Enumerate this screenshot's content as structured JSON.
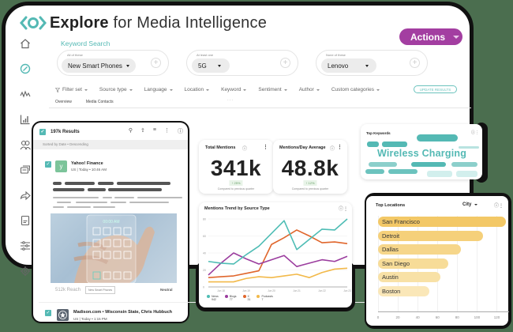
{
  "app": {
    "title_bold": "Explore",
    "title_rest": " for Media Intelligence",
    "actions_label": "Actions",
    "brand_color": "#54b9b4",
    "actions_color": "#a33ea1"
  },
  "sidebar": {
    "items": [
      {
        "icon": "home-icon"
      },
      {
        "icon": "compass-icon",
        "active": true
      },
      {
        "icon": "pulse-icon"
      },
      {
        "icon": "bar-chart-icon"
      },
      {
        "icon": "users-icon"
      },
      {
        "icon": "chat-icon"
      },
      {
        "icon": "share-icon"
      },
      {
        "icon": "document-icon"
      },
      {
        "icon": "sliders-icon"
      },
      {
        "icon": "settings-icon"
      }
    ]
  },
  "keyword_search": {
    "label": "Keyword Search",
    "groups": [
      {
        "caption": "All of these",
        "value": "New Smart Phones"
      },
      {
        "caption": "At least one",
        "value": "5G"
      },
      {
        "caption": "None of these",
        "value": "Lenovo"
      }
    ]
  },
  "filters": {
    "items": [
      "Filter set",
      "Source type",
      "Language",
      "Location",
      "Keyword",
      "Sentiment",
      "Author",
      "Custom categories"
    ],
    "more": "...",
    "update_label": "UPDATE RESULTS"
  },
  "tabs": [
    "Overview",
    "Media Contacts"
  ],
  "results": {
    "count_label": "197k Results",
    "sort_label": "Sorted by Date • Descending",
    "items": [
      {
        "source": "Yahoo! Finance",
        "meta": "US | Today • 10:46 AM",
        "avatar_letter": "y",
        "reach": "512k Reach",
        "tag": "New Smart Phones",
        "sentiment": "Neutral"
      },
      {
        "source": "Madison.com • Wisconsin State, Chris Hubbuch",
        "meta": "US | Today • 1:15 PM"
      }
    ]
  },
  "kpis": [
    {
      "title": "Total Mentions",
      "value": "341k",
      "delta": "↑ 25%",
      "compare": "Compared to previous quarter"
    },
    {
      "title": "Mentions/Day Average",
      "value": "48.8k",
      "delta": "↑ 12%",
      "compare": "Compared to previous quarter"
    }
  ],
  "top_keywords": {
    "title": "Top Keywords",
    "highlight": "Wireless Charging"
  },
  "top_locations": {
    "title": "Top Locations",
    "dimension": "City"
  },
  "chart_data": [
    {
      "type": "line",
      "title": "Mentions Trend by Source Type",
      "categories": [
        "",
        "Jun 18",
        "",
        "Jun 19",
        "",
        "Jun 20",
        "",
        "Jun 21",
        "",
        "Jun 22",
        "",
        "Jun 23"
      ],
      "ylim": [
        0,
        80
      ],
      "yticks": [
        0,
        20,
        40,
        60,
        80
      ],
      "series": [
        {
          "name": "News",
          "total": "942",
          "color": "#4fbdb5",
          "values": [
            30,
            28,
            27,
            38,
            48,
            63,
            78,
            44,
            56,
            68,
            67,
            80
          ]
        },
        {
          "name": "Blogs",
          "total": "77",
          "color": "#9b3d9e",
          "values": [
            14,
            28,
            40,
            33,
            27,
            32,
            37,
            24,
            28,
            32,
            30,
            36
          ]
        },
        {
          "name": "X",
          "total": "31",
          "color": "#e0662c",
          "values": [
            11,
            12,
            13,
            16,
            19,
            50,
            58,
            67,
            60,
            52,
            53,
            51
          ]
        },
        {
          "name": "Podcasts",
          "total": "7",
          "color": "#f2b94a",
          "values": [
            6,
            6,
            6,
            10,
            12,
            11,
            13,
            15,
            11,
            17,
            21,
            22
          ]
        }
      ],
      "grid": true,
      "legend_position": "bottom"
    },
    {
      "type": "bar",
      "orientation": "horizontal",
      "title": "Top Locations",
      "categories": [
        "San Francisco",
        "Detroit",
        "Dallas",
        "San Diego",
        "Austin",
        "Boston"
      ],
      "values": [
        129,
        106,
        84,
        71,
        63,
        52
      ],
      "xlim": [
        0,
        130
      ],
      "xticks": [
        0,
        20,
        40,
        60,
        80,
        100,
        120
      ],
      "color": "#f3c866"
    }
  ]
}
